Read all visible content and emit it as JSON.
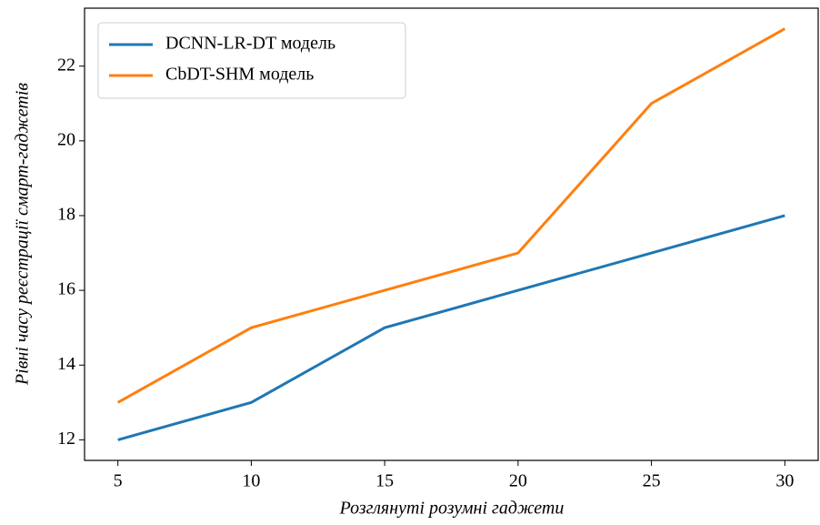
{
  "chart_data": {
    "type": "line",
    "x_label": "Розглянуті розумні гаджети",
    "y_label": "Рівні часу реєстрації смарт-гаджетів",
    "x": [
      5,
      10,
      15,
      20,
      25,
      30
    ],
    "series": [
      {
        "name": "DCNN-LR-DT модель",
        "color": "#1f77b4",
        "values": [
          12,
          13,
          15,
          16,
          17,
          18
        ]
      },
      {
        "name": "CbDT-SHM модель",
        "color": "#ff7f0e",
        "values": [
          13,
          15,
          16,
          17,
          21,
          23
        ]
      }
    ],
    "xlim": [
      3.75,
      31.25
    ],
    "xticks": [
      5,
      10,
      15,
      20,
      25,
      30
    ],
    "ylim": [
      11.45,
      23.55
    ],
    "yticks": [
      12,
      14,
      16,
      18,
      20,
      22
    ],
    "grid": false,
    "legend": "upper left"
  }
}
